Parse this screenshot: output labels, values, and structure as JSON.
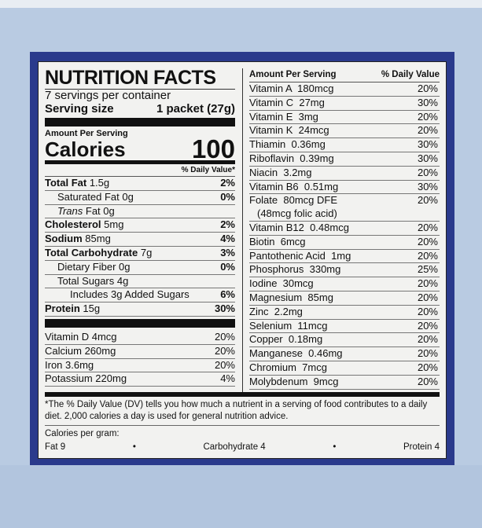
{
  "label": {
    "title": "NUTRITION FACTS",
    "servings": "7 servings per container",
    "serving_size_label": "Serving size",
    "serving_size_value": "1 packet (27g)",
    "amount_per_serving": "Amount Per Serving",
    "calories_label": "Calories",
    "calories_value": "100",
    "daily_value_header": "% Daily Value*",
    "nutrients": [
      {
        "name": "Total Fat",
        "amount": "1.5g",
        "dv": "2%",
        "bold": true,
        "indent": 0
      },
      {
        "name": "Saturated Fat",
        "amount": "0g",
        "dv": "0%",
        "bold": false,
        "indent": 1
      },
      {
        "name": "Trans",
        "amount": "Fat 0g",
        "dv": "",
        "bold": false,
        "indent": 1,
        "italic": true
      },
      {
        "name": "Cholesterol",
        "amount": "5mg",
        "dv": "2%",
        "bold": true,
        "indent": 0
      },
      {
        "name": "Sodium",
        "amount": "85mg",
        "dv": "4%",
        "bold": true,
        "indent": 0
      },
      {
        "name": "Total Carbohydrate",
        "amount": "7g",
        "dv": "3%",
        "bold": true,
        "indent": 0
      },
      {
        "name": "Dietary Fiber",
        "amount": "0g",
        "dv": "0%",
        "bold": false,
        "indent": 1
      },
      {
        "name": "Total Sugars",
        "amount": "4g",
        "dv": "",
        "bold": false,
        "indent": 1
      },
      {
        "name": "Includes 3g Added Sugars",
        "amount": "",
        "dv": "6%",
        "bold": false,
        "indent": 2
      },
      {
        "name": "Protein",
        "amount": "15g",
        "dv": "30%",
        "bold": true,
        "indent": 0
      }
    ],
    "minerals_left": [
      {
        "name": "Vitamin D 4mcg",
        "dv": "20%"
      },
      {
        "name": "Calcium 260mg",
        "dv": "20%"
      },
      {
        "name": "Iron 3.6mg",
        "dv": "20%"
      },
      {
        "name": "Potassium 220mg",
        "dv": "4%"
      }
    ],
    "right_header": {
      "left": "Amount Per Serving",
      "right": "% Daily Value"
    },
    "right_items": [
      {
        "name": "Vitamin A  180mcg",
        "dv": "20%"
      },
      {
        "name": "Vitamin C  27mg",
        "dv": "30%"
      },
      {
        "name": "Vitamin E  3mg",
        "dv": "20%"
      },
      {
        "name": "Vitamin K  24mcg",
        "dv": "20%"
      },
      {
        "name": "Thiamin  0.36mg",
        "dv": "30%"
      },
      {
        "name": "Riboflavin  0.39mg",
        "dv": "30%"
      },
      {
        "name": "Niacin  3.2mg",
        "dv": "20%"
      },
      {
        "name": "Vitamin B6  0.51mg",
        "dv": "30%"
      },
      {
        "name": "Folate  80mcg DFE",
        "sub": "(48mcg folic acid)",
        "dv": "20%"
      },
      {
        "name": "Vitamin B12  0.48mcg",
        "dv": "20%"
      },
      {
        "name": "Biotin  6mcg",
        "dv": "20%"
      },
      {
        "name": "Pantothenic Acid  1mg",
        "dv": "20%"
      },
      {
        "name": "Phosphorus  330mg",
        "dv": "25%"
      },
      {
        "name": "Iodine  30mcg",
        "dv": "20%"
      },
      {
        "name": "Magnesium  85mg",
        "dv": "20%"
      },
      {
        "name": "Zinc  2.2mg",
        "dv": "20%"
      },
      {
        "name": "Selenium  11mcg",
        "dv": "20%"
      },
      {
        "name": "Copper  0.18mg",
        "dv": "20%"
      },
      {
        "name": "Manganese  0.46mg",
        "dv": "20%"
      },
      {
        "name": "Chromium  7mcg",
        "dv": "20%"
      },
      {
        "name": "Molybdenum  9mcg",
        "dv": "20%"
      }
    ],
    "footnote": "*The % Daily Value (DV) tells you how much a nutrient in a serving of food contributes to a daily diet. 2,000 calories a day is used for general nutrition advice.",
    "calories_per_gram": "Calories per gram:",
    "cpg": {
      "fat": "Fat 9",
      "sep": "•",
      "carb": "Carbohydrate 4",
      "protein": "Protein 4"
    }
  },
  "colors": {
    "background": "#b9cbe2",
    "frame": "#2a3a8c",
    "label": "#f2f2f0"
  }
}
